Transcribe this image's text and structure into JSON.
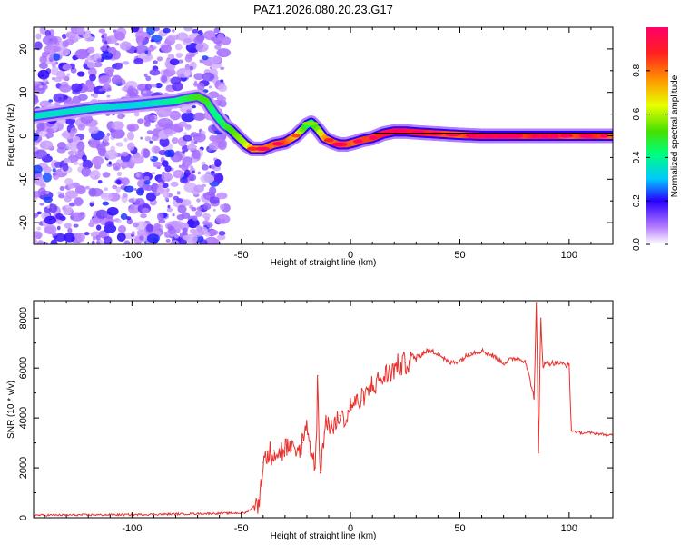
{
  "title": "PAZ1.2026.080.20.23.G17",
  "colors": {
    "snr_line": "#e8302c",
    "ridge_black": "#000000",
    "frame": "#000000",
    "background": "#ffffff"
  },
  "chart_data": [
    {
      "type": "heatmap",
      "name": "spectrogram",
      "title": "PAZ1.2026.080.20.23.G17",
      "xlabel": "Height of straight line (km)",
      "ylabel": "Frequency (Hz)",
      "xlim": [
        -145,
        120
      ],
      "ylim": [
        -25,
        25
      ],
      "xticks": [
        -100,
        -50,
        0,
        50,
        100
      ],
      "yticks": [
        20,
        10,
        0,
        -10,
        -20
      ],
      "noise_region_x": [
        -145,
        -57
      ],
      "ridge": {
        "x": [
          -145,
          -130,
          -115,
          -100,
          -90,
          -80,
          -76,
          -70,
          -66,
          -62,
          -58,
          -55,
          -52,
          -48,
          -45,
          -40,
          -35,
          -30,
          -25,
          -20,
          -18,
          -15,
          -12,
          -8,
          -5,
          -2,
          2,
          5,
          10,
          15,
          20,
          25,
          30,
          40,
          50,
          60,
          70,
          80,
          90,
          100,
          110,
          120
        ],
        "y": [
          4.5,
          5.5,
          6.5,
          7.0,
          7.5,
          8.0,
          8.5,
          9.0,
          8.0,
          5.0,
          2.5,
          1.5,
          0.0,
          -2.0,
          -3.0,
          -3.0,
          -2.0,
          -1.5,
          0.0,
          2.5,
          3.0,
          1.5,
          -0.5,
          -1.5,
          -2.0,
          -2.0,
          -1.5,
          -1.0,
          -0.5,
          0.5,
          1.0,
          1.0,
          0.8,
          0.5,
          0.2,
          0.0,
          0.0,
          0.0,
          0.0,
          0.0,
          0.0,
          0.0
        ],
        "amplitude": [
          0.35,
          0.35,
          0.35,
          0.32,
          0.35,
          0.4,
          0.45,
          0.5,
          0.5,
          0.4,
          0.45,
          0.5,
          0.55,
          0.6,
          0.75,
          0.8,
          0.8,
          0.85,
          0.7,
          0.45,
          0.45,
          0.55,
          0.75,
          0.8,
          0.85,
          0.85,
          0.8,
          0.85,
          0.85,
          0.9,
          0.95,
          0.95,
          0.9,
          0.85,
          0.8,
          0.95,
          0.95,
          0.85,
          0.95,
          0.8,
          0.9,
          0.8
        ]
      },
      "flat_line": {
        "x_start": 10,
        "x_end": 120,
        "y": 0
      },
      "colorbar": {
        "label": "Normalized spectral amplitude",
        "ticks": [
          "0.0",
          "0.2",
          "0.4",
          "0.6",
          "0.8"
        ],
        "tick_values": [
          0.0,
          0.2,
          0.4,
          0.6,
          0.8
        ],
        "range": [
          0,
          1
        ]
      }
    },
    {
      "type": "line",
      "name": "snr",
      "xlabel": "Height of straight line (km)",
      "ylabel": "SNR (10 * v/v)",
      "xlim": [
        -145,
        120
      ],
      "ylim": [
        0,
        8700
      ],
      "xticks": [
        -100,
        -50,
        0,
        50,
        100
      ],
      "yticks": [
        0,
        2000,
        4000,
        6000,
        8000
      ],
      "series": [
        {
          "name": "SNR",
          "x": [
            -145,
            -100,
            -55,
            -48,
            -45,
            -42,
            -40,
            -38,
            -35,
            -32,
            -30,
            -27,
            -25,
            -22,
            -20,
            -18,
            -16,
            -15,
            -14,
            -12,
            -10,
            -8,
            -5,
            -2,
            0,
            5,
            10,
            15,
            20,
            25,
            30,
            35,
            40,
            45,
            50,
            55,
            60,
            65,
            70,
            75,
            80,
            84,
            85,
            86,
            87,
            88,
            90,
            95,
            100,
            101,
            105,
            110,
            120
          ],
          "y": [
            100,
            120,
            180,
            200,
            400,
            600,
            2200,
            2500,
            2700,
            2600,
            2800,
            2700,
            2500,
            3000,
            3800,
            2600,
            2000,
            5700,
            1800,
            3400,
            3900,
            3500,
            4100,
            3900,
            4500,
            4700,
            5300,
            5600,
            6000,
            6200,
            6400,
            6700,
            6600,
            6200,
            6300,
            6600,
            6700,
            6500,
            6200,
            6400,
            6300,
            4800,
            8600,
            2600,
            8000,
            6100,
            6200,
            6200,
            6100,
            3500,
            3400,
            3400,
            3300
          ]
        }
      ]
    }
  ]
}
